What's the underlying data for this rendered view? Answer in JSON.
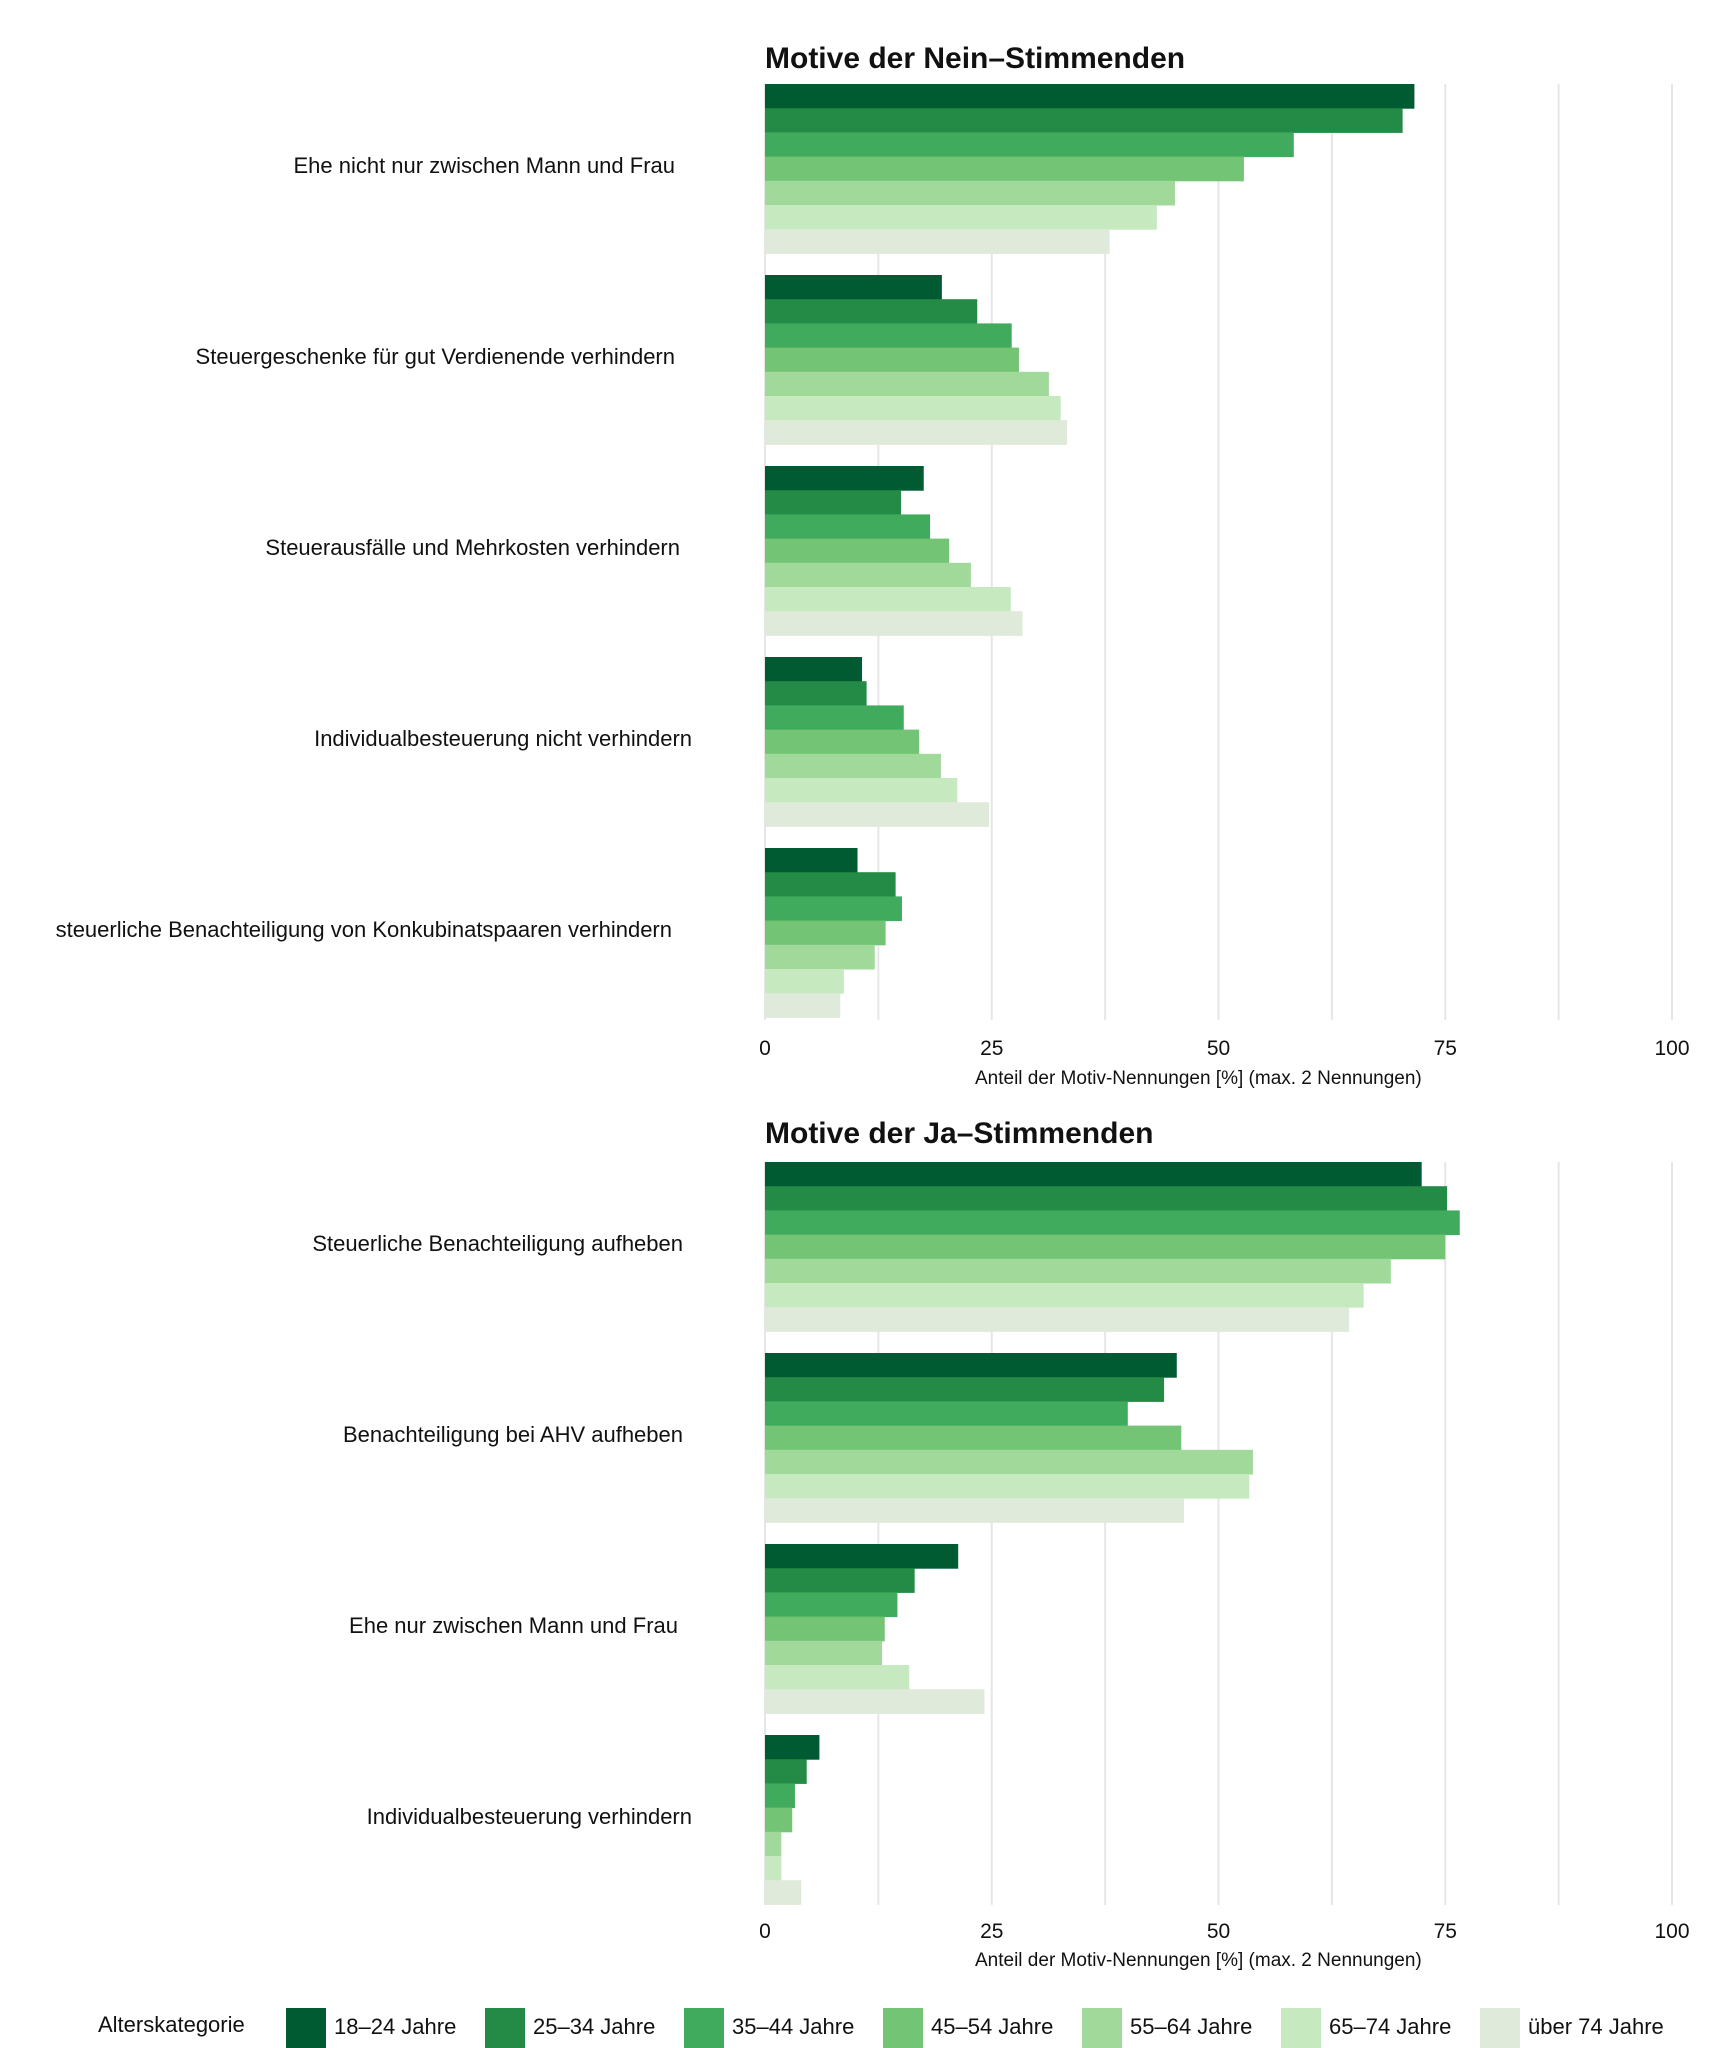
{
  "legend": {
    "title": "Alterskategorie",
    "items": [
      {
        "label": "18–24 Jahre",
        "color": "#005a32"
      },
      {
        "label": "25–34 Jahre",
        "color": "#238b45"
      },
      {
        "label": "35–44 Jahre",
        "color": "#41ab5d"
      },
      {
        "label": "45–54 Jahre",
        "color": "#74c476"
      },
      {
        "label": "55–64 Jahre",
        "color": "#a1d99b"
      },
      {
        "label": "65–74 Jahre",
        "color": "#c7e9c0"
      },
      {
        "label": "über 74 Jahre",
        "color": "#e0eadb"
      }
    ]
  },
  "chart_data": [
    {
      "type": "bar",
      "orientation": "horizontal",
      "title": "Motive der Nein–Stimmenden",
      "xlabel": "Anteil der Motiv-Nennungen [%] (max. 2 Nennungen)",
      "xlim": [
        0,
        100
      ],
      "xticks": [
        "0",
        "25",
        "50",
        "75",
        "100"
      ],
      "categories": [
        "Ehe nicht nur zwischen Mann und Frau",
        "Steuergeschenke für gut Verdienende verhindern",
        "Steuerausfälle und Mehrkosten verhindern",
        "Individualbesteuerung nicht verhindern",
        "steuerliche Benachteiligung von Konkubinatspaaren verhindern"
      ],
      "series": [
        {
          "name": "18–24 Jahre",
          "values": [
            71.6,
            19.5,
            17.5,
            10.7,
            10.2
          ]
        },
        {
          "name": "25–34 Jahre",
          "values": [
            70.3,
            23.4,
            15.0,
            11.2,
            14.4
          ]
        },
        {
          "name": "35–44 Jahre",
          "values": [
            58.3,
            27.2,
            18.2,
            15.3,
            15.1
          ]
        },
        {
          "name": "45–54 Jahre",
          "values": [
            52.8,
            28.0,
            20.3,
            17.0,
            13.3
          ]
        },
        {
          "name": "55–64 Jahre",
          "values": [
            45.2,
            31.3,
            22.7,
            19.4,
            12.1
          ]
        },
        {
          "name": "65–74 Jahre",
          "values": [
            43.2,
            32.6,
            27.1,
            21.2,
            8.7
          ]
        },
        {
          "name": "über 74 Jahre",
          "values": [
            38.0,
            33.3,
            28.4,
            24.7,
            8.3
          ]
        }
      ]
    },
    {
      "type": "bar",
      "orientation": "horizontal",
      "title": "Motive der Ja–Stimmenden",
      "xlabel": "Anteil der Motiv-Nennungen [%] (max. 2 Nennungen)",
      "xlim": [
        0,
        100
      ],
      "xticks": [
        "0",
        "25",
        "50",
        "75",
        "100"
      ],
      "categories": [
        "Steuerliche Benachteiligung aufheben",
        "Benachteiligung bei AHV aufheben",
        "Ehe nur zwischen Mann und Frau",
        "Individualbesteuerung verhindern"
      ],
      "series": [
        {
          "name": "18–24 Jahre",
          "values": [
            72.4,
            45.4,
            21.3,
            6.0
          ]
        },
        {
          "name": "25–34 Jahre",
          "values": [
            75.2,
            44.0,
            16.5,
            4.6
          ]
        },
        {
          "name": "35–44 Jahre",
          "values": [
            76.6,
            40.0,
            14.6,
            3.3
          ]
        },
        {
          "name": "45–54 Jahre",
          "values": [
            75.0,
            45.9,
            13.2,
            3.0
          ]
        },
        {
          "name": "55–64 Jahre",
          "values": [
            69.0,
            53.8,
            12.9,
            1.8
          ]
        },
        {
          "name": "65–74 Jahre",
          "values": [
            66.0,
            53.4,
            15.9,
            1.8
          ]
        },
        {
          "name": "über 74 Jahre",
          "values": [
            64.4,
            46.2,
            24.2,
            4.0
          ]
        }
      ]
    }
  ]
}
